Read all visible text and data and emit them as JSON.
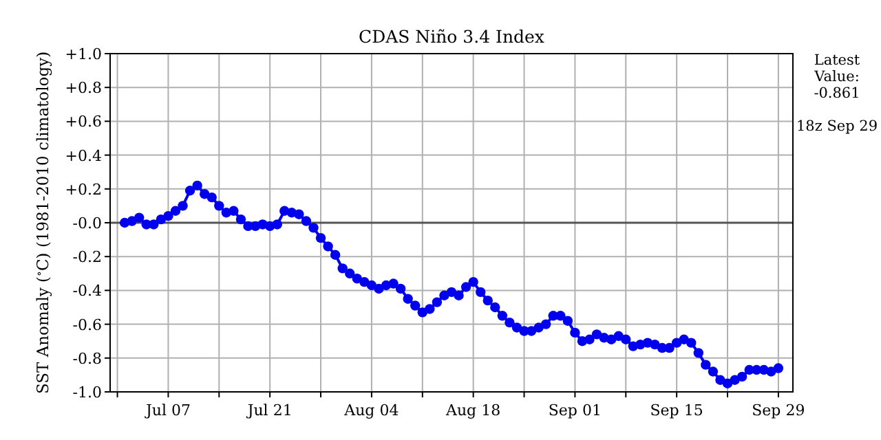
{
  "chart_data": {
    "type": "line",
    "title": "CDAS Niño 3.4 Index",
    "ylabel": "SST Anomaly ($^{∘}$C) (1981-2010 climatology)",
    "annotations": [
      "Latest\nValue:\n-0.861",
      "18z Sep 29"
    ],
    "x": [
      "--07-01",
      "--07-02",
      "--07-03",
      "--07-04",
      "--07-05",
      "--07-06",
      "--07-07",
      "--07-08",
      "--07-09",
      "--07-10",
      "--07-11",
      "--07-12",
      "--07-13",
      "--07-14",
      "--07-15",
      "--07-16",
      "--07-17",
      "--07-18",
      "--07-19",
      "--07-20",
      "--07-21",
      "--07-22",
      "--07-23",
      "--07-24",
      "--07-25",
      "--07-26",
      "--07-27",
      "--07-28",
      "--07-29",
      "--07-30",
      "--07-31",
      "--08-01",
      "--08-02",
      "--08-03",
      "--08-04",
      "--08-05",
      "--08-06",
      "--08-07",
      "--08-08",
      "--08-09",
      "--08-10",
      "--08-11",
      "--08-12",
      "--08-13",
      "--08-14",
      "--08-15",
      "--08-16",
      "--08-17",
      "--08-18",
      "--08-19",
      "--08-20",
      "--08-21",
      "--08-22",
      "--08-23",
      "--08-24",
      "--08-25",
      "--08-26",
      "--08-27",
      "--08-28",
      "--08-29",
      "--08-30",
      "--08-31",
      "--09-01",
      "--09-02",
      "--09-03",
      "--09-04",
      "--09-05",
      "--09-06",
      "--09-07",
      "--09-08",
      "--09-09",
      "--09-10",
      "--09-11",
      "--09-12",
      "--09-13",
      "--09-14",
      "--09-15",
      "--09-16",
      "--09-17",
      "--09-18",
      "--09-19",
      "--09-20",
      "--09-21",
      "--09-22",
      "--09-23",
      "--09-24",
      "--09-25",
      "--09-26",
      "--09-27",
      "--09-28",
      "--09-29"
    ],
    "series": [
      {
        "color": "#0000ee",
        "values": [
          0.0,
          0.01,
          0.03,
          -0.01,
          -0.01,
          0.02,
          0.04,
          0.07,
          0.1,
          0.19,
          0.22,
          0.17,
          0.15,
          0.1,
          0.06,
          0.07,
          0.02,
          -0.02,
          -0.02,
          -0.01,
          -0.02,
          -0.01,
          0.07,
          0.06,
          0.05,
          0.01,
          -0.03,
          -0.09,
          -0.14,
          -0.19,
          -0.27,
          -0.3,
          -0.33,
          -0.35,
          -0.37,
          -0.39,
          -0.37,
          -0.36,
          -0.39,
          -0.45,
          -0.49,
          -0.53,
          -0.51,
          -0.47,
          -0.43,
          -0.41,
          -0.43,
          -0.38,
          -0.35,
          -0.41,
          -0.46,
          -0.5,
          -0.55,
          -0.59,
          -0.62,
          -0.64,
          -0.64,
          -0.62,
          -0.6,
          -0.55,
          -0.55,
          -0.58,
          -0.65,
          -0.7,
          -0.69,
          -0.66,
          -0.68,
          -0.69,
          -0.67,
          -0.69,
          -0.73,
          -0.72,
          -0.71,
          -0.72,
          -0.74,
          -0.74,
          -0.71,
          -0.69,
          -0.71,
          -0.77,
          -0.84,
          -0.88,
          -0.93,
          -0.95,
          -0.93,
          -0.91,
          -0.87,
          -0.87,
          -0.87,
          -0.88,
          -0.86
        ]
      }
    ],
    "xlim": [
      "--06-29",
      "--10-01"
    ],
    "xticks": [
      {
        "value": "--06-30",
        "label": null
      },
      {
        "value": "--07-07",
        "label": "Jul 07"
      },
      {
        "value": "--07-14",
        "label": null
      },
      {
        "value": "--07-21",
        "label": "Jul 21"
      },
      {
        "value": "--07-28",
        "label": null
      },
      {
        "value": "--08-04",
        "label": "Aug 04"
      },
      {
        "value": "--08-11",
        "label": null
      },
      {
        "value": "--08-18",
        "label": "Aug 18"
      },
      {
        "value": "--08-25",
        "label": null
      },
      {
        "value": "--09-01",
        "label": "Sep 01"
      },
      {
        "value": "--09-08",
        "label": null
      },
      {
        "value": "--09-15",
        "label": "Sep 15"
      },
      {
        "value": "--09-22",
        "label": null
      },
      {
        "value": "--09-29",
        "label": "Sep 29"
      }
    ],
    "ylim": [
      -1,
      1
    ],
    "yticks": [
      {
        "value": 1,
        "label": "+1.0"
      },
      {
        "value": 0.8,
        "label": "+0.8"
      },
      {
        "value": 0.6,
        "label": "+0.6"
      },
      {
        "value": 0.4,
        "label": "+0.4"
      },
      {
        "value": 0.2,
        "label": "+0.2"
      },
      {
        "value": 0,
        "label": "-0.0"
      },
      {
        "value": -0.2,
        "label": "-0.2"
      },
      {
        "value": -0.4,
        "label": "-0.4"
      },
      {
        "value": -0.6,
        "label": "-0.6"
      },
      {
        "value": -0.8,
        "label": "-0.8"
      },
      {
        "value": -1,
        "label": "-1.0"
      }
    ],
    "ref_lines": [
      {
        "axis": "y",
        "value": 0,
        "color": "#555555"
      }
    ],
    "grid": true,
    "marker": "circle",
    "line_style": "solid"
  }
}
